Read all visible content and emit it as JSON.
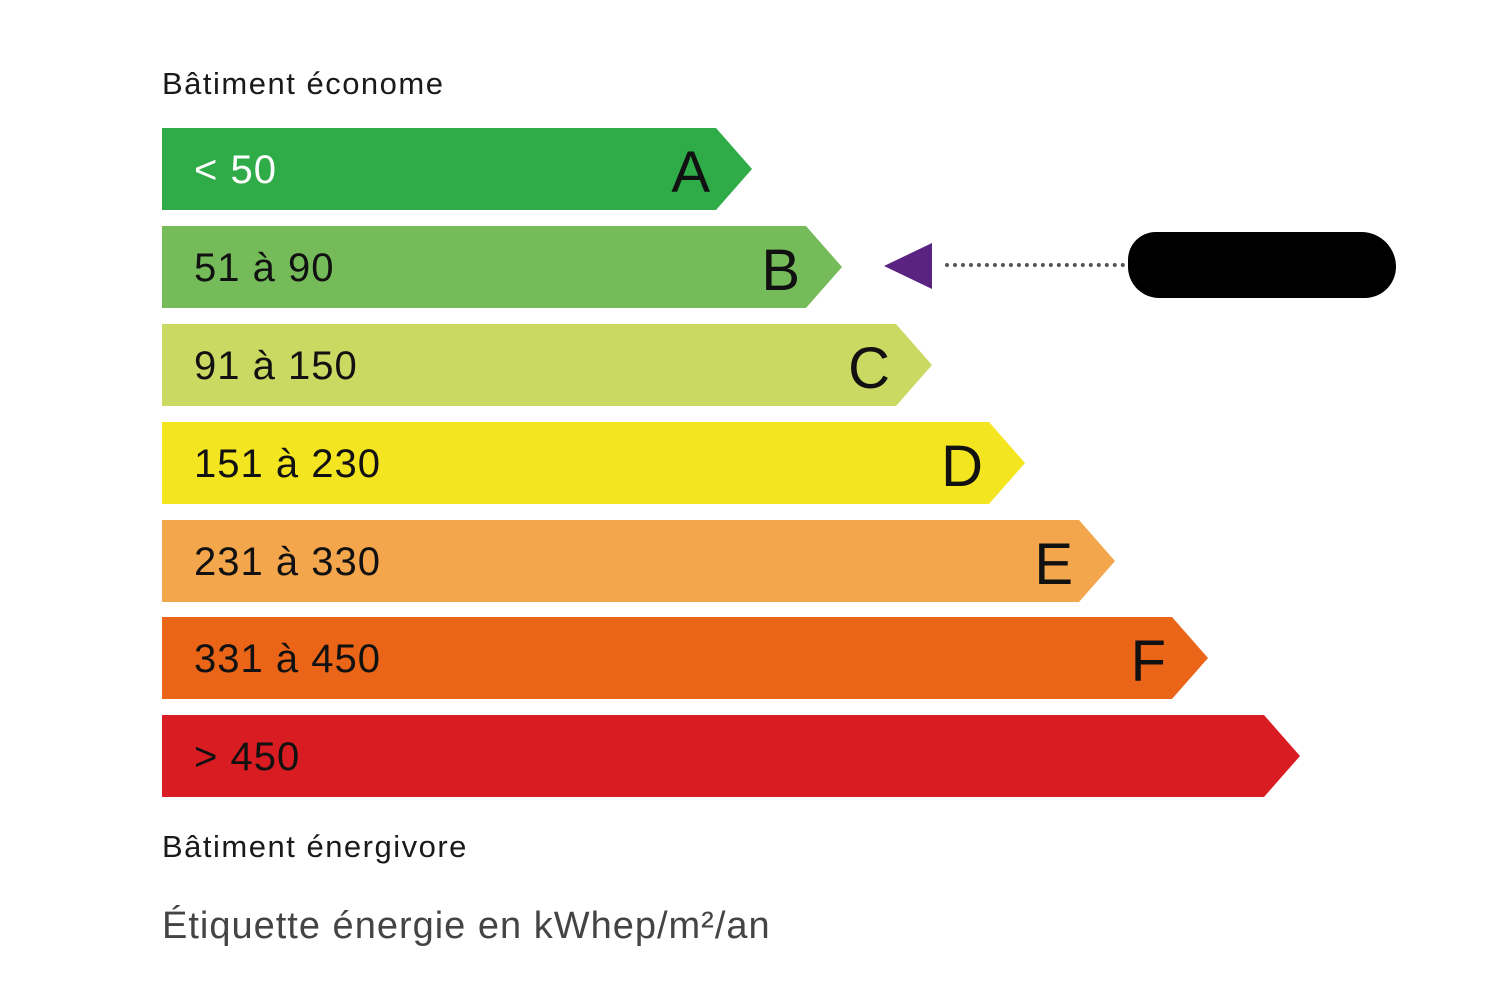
{
  "top_label": "Bâtiment économe",
  "bottom_label": "Bâtiment énergivore",
  "footer": "Étiquette énergie en kWhep/m²/an",
  "classes": [
    {
      "letter": "A",
      "range": "< 50",
      "color": "#2fab48",
      "text_color": "#ffffff"
    },
    {
      "letter": "B",
      "range": "51 à 90",
      "color": "#76bb5a",
      "text_color": "#111111"
    },
    {
      "letter": "C",
      "range": "91 à 150",
      "color": "#c9d962",
      "text_color": "#111111"
    },
    {
      "letter": "D",
      "range": "151 à 230",
      "color": "#f3e520",
      "text_color": "#111111"
    },
    {
      "letter": "E",
      "range": "231 à 330",
      "color": "#f4a64c",
      "text_color": "#111111"
    },
    {
      "letter": "F",
      "range": "331 à 450",
      "color": "#ea6518",
      "text_color": "#111111"
    },
    {
      "letter": "",
      "range": "> 450",
      "color": "#d81c21",
      "text_color": "#111111"
    }
  ],
  "rating": {
    "class": "B",
    "marker_color": "#5b2381",
    "value_redacted": true
  }
}
